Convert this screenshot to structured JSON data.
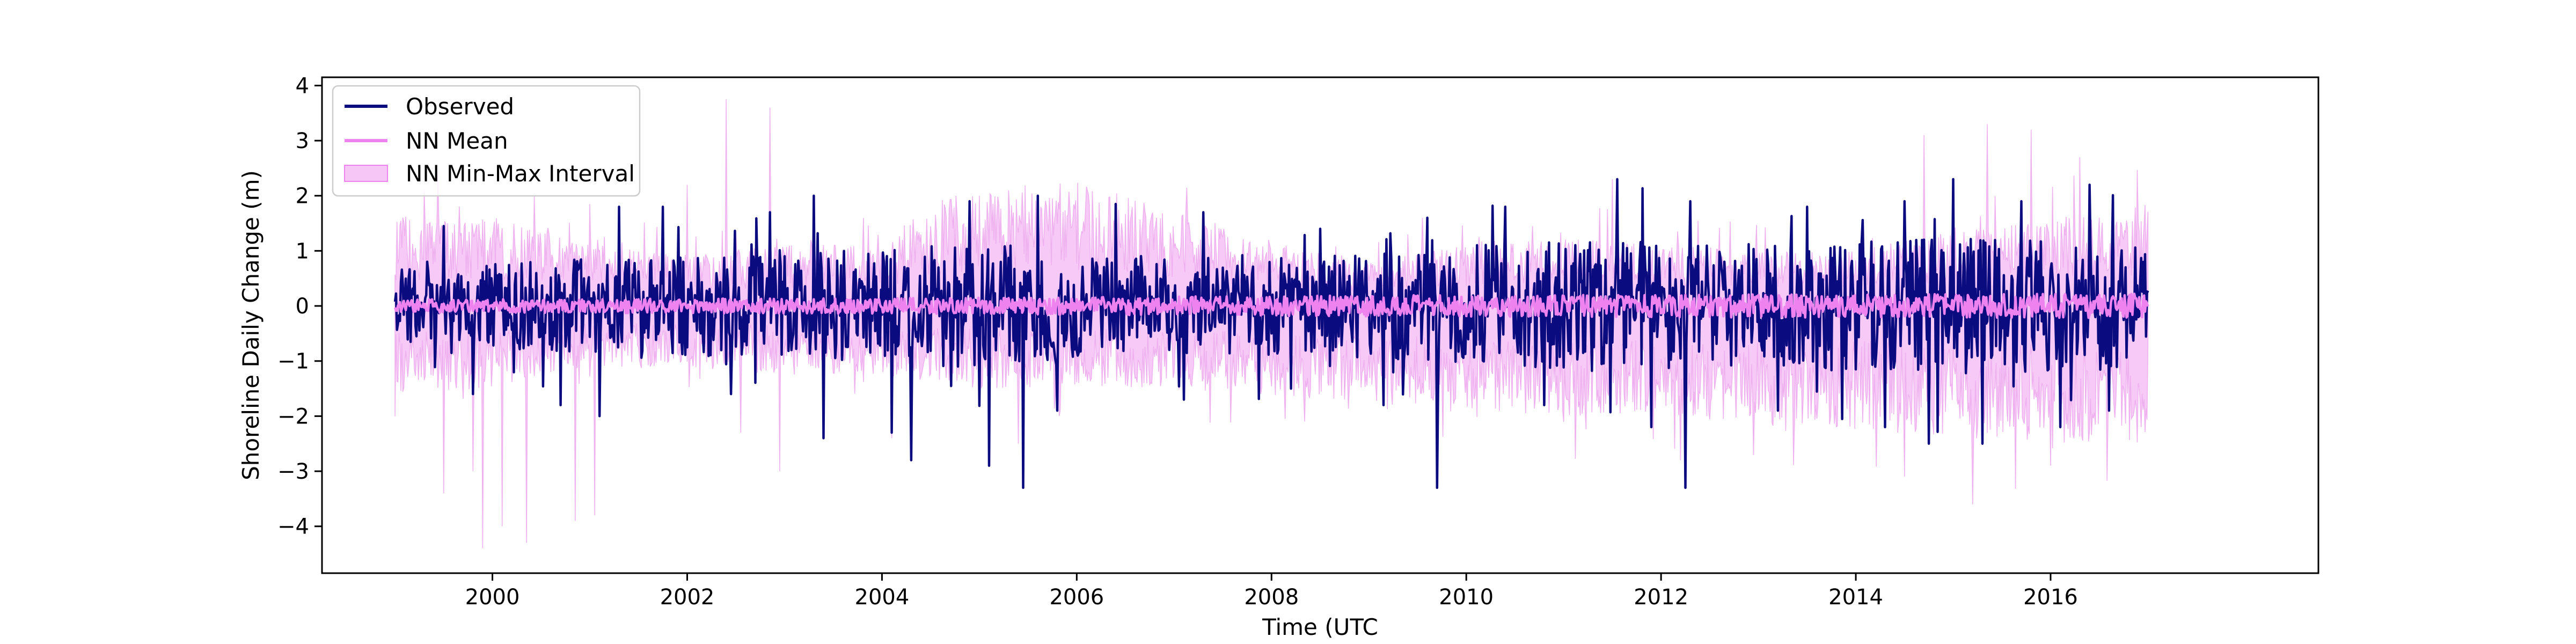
{
  "chart_data": {
    "type": "line",
    "title": "",
    "xlabel": "Time (UTC",
    "ylabel": "Shoreline Daily Change (m)",
    "xlim": [
      1998.25,
      2018.75
    ],
    "ylim": [
      -4.85,
      4.15
    ],
    "x_ticks": [
      2000,
      2002,
      2004,
      2006,
      2008,
      2010,
      2012,
      2014,
      2016
    ],
    "x_tick_labels": [
      "2000",
      "2002",
      "2004",
      "2006",
      "2008",
      "2010",
      "2012",
      "2014",
      "2016"
    ],
    "y_ticks": [
      4,
      3,
      2,
      1,
      0,
      -1,
      -2,
      -3,
      -4
    ],
    "y_tick_labels": [
      "4",
      "3",
      "2",
      "1",
      "0",
      "−1",
      "−2",
      "−3",
      "−4"
    ],
    "grid": false,
    "legend_position": "top-left",
    "legend": [
      {
        "label": "Observed",
        "kind": "line",
        "color": "#0b0b80"
      },
      {
        "label": "NN Mean",
        "kind": "line",
        "color": "#ee82ee"
      },
      {
        "label": "NN Min-Max Interval",
        "kind": "patch",
        "color": "#f2b8f2"
      }
    ],
    "x_range": [
      1999.0,
      2017.0
    ],
    "series": [
      {
        "name": "Observed",
        "color": "#0b0b80",
        "typical_high": [
          [
            1999.0,
            0.35
          ],
          [
            2001.0,
            0.45
          ],
          [
            2003.0,
            0.5
          ],
          [
            2005.0,
            0.6
          ],
          [
            2007.0,
            0.45
          ],
          [
            2009.0,
            0.5
          ],
          [
            2011.0,
            0.65
          ],
          [
            2013.0,
            0.6
          ],
          [
            2015.0,
            0.65
          ],
          [
            2017.0,
            0.6
          ]
        ],
        "typical_low": [
          [
            1999.0,
            -0.35
          ],
          [
            2001.0,
            -0.45
          ],
          [
            2003.0,
            -0.5
          ],
          [
            2005.0,
            -0.6
          ],
          [
            2007.0,
            -0.45
          ],
          [
            2009.0,
            -0.5
          ],
          [
            2011.0,
            -0.6
          ],
          [
            2013.0,
            -0.6
          ],
          [
            2015.0,
            -0.65
          ],
          [
            2017.0,
            -0.6
          ]
        ],
        "spikes": [
          [
            1999.5,
            1.45
          ],
          [
            2001.3,
            1.8
          ],
          [
            2001.75,
            1.8
          ],
          [
            2002.45,
            1.8
          ],
          [
            2002.85,
            1.7
          ],
          [
            2003.3,
            2.0
          ],
          [
            2004.3,
            2.3
          ],
          [
            2004.9,
            1.9
          ],
          [
            2005.6,
            2.0
          ],
          [
            2006.4,
            1.85
          ],
          [
            2007.3,
            1.7
          ],
          [
            2008.5,
            1.4
          ],
          [
            2009.6,
            1.6
          ],
          [
            2010.4,
            1.8
          ],
          [
            2011.55,
            2.3
          ],
          [
            2012.3,
            1.9
          ],
          [
            2013.5,
            1.8
          ],
          [
            2014.5,
            1.9
          ],
          [
            2015.0,
            2.3
          ],
          [
            2015.7,
            1.9
          ],
          [
            2016.4,
            2.2
          ],
          [
            1999.8,
            -1.6
          ],
          [
            2000.7,
            -1.8
          ],
          [
            2001.1,
            -2.0
          ],
          [
            2002.45,
            -1.6
          ],
          [
            2003.4,
            -2.4
          ],
          [
            2004.1,
            -2.3
          ],
          [
            2004.3,
            -2.8
          ],
          [
            2005.1,
            -2.9
          ],
          [
            2005.45,
            -3.3
          ],
          [
            2005.8,
            -1.9
          ],
          [
            2007.1,
            -1.7
          ],
          [
            2008.2,
            -1.5
          ],
          [
            2009.15,
            -1.8
          ],
          [
            2009.7,
            -3.3
          ],
          [
            2010.8,
            -1.8
          ],
          [
            2011.9,
            -2.2
          ],
          [
            2012.25,
            -3.3
          ],
          [
            2013.2,
            -1.9
          ],
          [
            2014.3,
            -2.2
          ],
          [
            2014.75,
            -2.5
          ],
          [
            2015.3,
            -2.5
          ],
          [
            2016.1,
            -2.2
          ],
          [
            2016.6,
            -1.9
          ]
        ]
      },
      {
        "name": "NN Mean",
        "color": "#ee82ee",
        "typical_high": [
          [
            1999.0,
            0.12
          ],
          [
            2005.0,
            0.15
          ],
          [
            2010.0,
            0.2
          ],
          [
            2017.0,
            0.22
          ]
        ],
        "typical_low": [
          [
            1999.0,
            -0.12
          ],
          [
            2005.0,
            -0.15
          ],
          [
            2010.0,
            -0.2
          ],
          [
            2017.0,
            -0.22
          ]
        ]
      },
      {
        "name": "NN Min-Max Interval",
        "color": "#f2b8f2",
        "upper_envelope": [
          [
            1999.0,
            1.3
          ],
          [
            2000.0,
            1.3
          ],
          [
            2001.0,
            0.9
          ],
          [
            2002.0,
            0.75
          ],
          [
            2003.0,
            0.9
          ],
          [
            2004.0,
            0.9
          ],
          [
            2004.5,
            1.5
          ],
          [
            2005.0,
            1.7
          ],
          [
            2006.0,
            1.8
          ],
          [
            2007.0,
            1.4
          ],
          [
            2008.0,
            0.95
          ],
          [
            2009.0,
            0.65
          ],
          [
            2010.0,
            0.9
          ],
          [
            2011.0,
            1.0
          ],
          [
            2012.0,
            0.9
          ],
          [
            2013.0,
            0.8
          ],
          [
            2014.0,
            0.8
          ],
          [
            2015.0,
            1.1
          ],
          [
            2016.0,
            1.3
          ],
          [
            2017.0,
            1.4
          ]
        ],
        "lower_envelope": [
          [
            1999.0,
            -1.3
          ],
          [
            2000.0,
            -1.2
          ],
          [
            2001.0,
            -0.9
          ],
          [
            2002.0,
            -0.9
          ],
          [
            2003.0,
            -1.0
          ],
          [
            2004.0,
            -1.0
          ],
          [
            2005.0,
            -1.2
          ],
          [
            2006.0,
            -1.2
          ],
          [
            2007.0,
            -1.2
          ],
          [
            2008.0,
            -1.3
          ],
          [
            2009.0,
            -1.4
          ],
          [
            2010.0,
            -1.5
          ],
          [
            2011.0,
            -1.6
          ],
          [
            2012.0,
            -1.6
          ],
          [
            2013.0,
            -1.7
          ],
          [
            2014.0,
            -1.8
          ],
          [
            2015.0,
            -1.9
          ],
          [
            2016.0,
            -2.0
          ],
          [
            2017.0,
            -2.0
          ]
        ],
        "spikes": [
          [
            1999.3,
            2.1
          ],
          [
            2001.0,
            1.85
          ],
          [
            2002.4,
            3.75
          ],
          [
            2002.85,
            3.6
          ],
          [
            2002.0,
            2.2
          ],
          [
            2005.3,
            2.1
          ],
          [
            2009.55,
            1.6
          ],
          [
            2011.5,
            2.3
          ],
          [
            2014.7,
            3.1
          ],
          [
            2015.35,
            3.3
          ],
          [
            2015.8,
            3.2
          ],
          [
            2016.3,
            2.7
          ],
          [
            1999.5,
            -3.4
          ],
          [
            1999.8,
            -3.0
          ],
          [
            1999.9,
            -4.4
          ],
          [
            2000.1,
            -4.0
          ],
          [
            2000.35,
            -4.3
          ],
          [
            2000.85,
            -3.9
          ],
          [
            2001.05,
            -3.8
          ],
          [
            2002.55,
            -2.3
          ],
          [
            2002.95,
            -3.0
          ],
          [
            2004.1,
            -2.4
          ],
          [
            2005.4,
            -2.5
          ],
          [
            2012.2,
            -2.8
          ],
          [
            2014.5,
            -3.1
          ],
          [
            2015.2,
            -3.6
          ],
          [
            2016.0,
            -2.9
          ]
        ]
      }
    ]
  }
}
